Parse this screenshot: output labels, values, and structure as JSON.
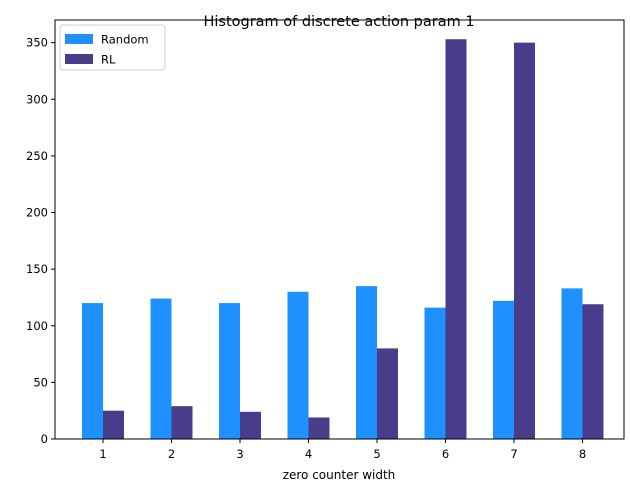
{
  "chart_data": {
    "type": "bar",
    "title": "Histogram of discrete action param 1",
    "xlabel": "zero counter width",
    "ylabel": "",
    "categories": [
      "1",
      "2",
      "3",
      "4",
      "5",
      "6",
      "7",
      "8"
    ],
    "ylim": [
      0,
      370
    ],
    "yticks": [
      0,
      50,
      100,
      150,
      200,
      250,
      300,
      350
    ],
    "grid": false,
    "legend_position": "top-left",
    "series": [
      {
        "name": "Random",
        "color": "#1e90ff",
        "values": [
          120,
          124,
          120,
          130,
          135,
          116,
          122,
          133
        ]
      },
      {
        "name": "RL",
        "color": "#483d8b",
        "values": [
          25,
          29,
          24,
          19,
          80,
          353,
          350,
          119
        ]
      }
    ]
  }
}
